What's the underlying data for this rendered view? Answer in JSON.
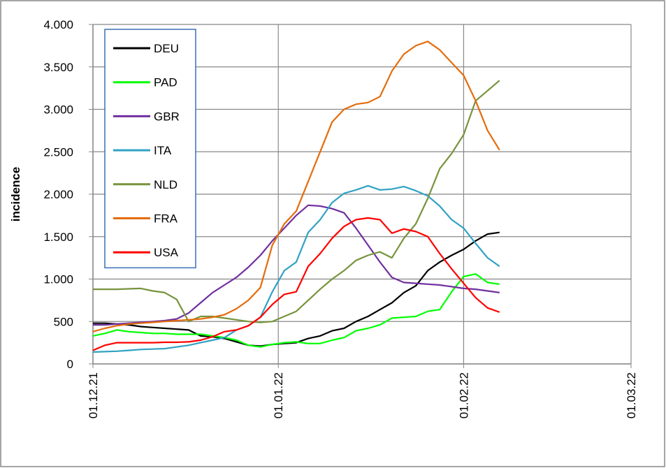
{
  "chart_data": {
    "type": "line",
    "y_label": "incidence",
    "x": [
      0,
      2,
      4,
      6,
      8,
      10,
      12,
      14,
      16,
      18,
      20,
      22,
      24,
      26,
      28,
      30,
      32,
      34,
      36,
      38,
      40,
      42,
      44,
      46,
      48,
      50,
      52,
      54,
      56,
      58,
      60,
      62,
      64,
      66,
      68
    ],
    "xlim": [
      0,
      90
    ],
    "xticks": [
      {
        "value": 0,
        "label": "01.12.21"
      },
      {
        "value": 31,
        "label": "01.01.22"
      },
      {
        "value": 62,
        "label": "01.02.22"
      },
      {
        "value": 90,
        "label": "01.03.22"
      }
    ],
    "ylim": [
      0,
      4000
    ],
    "yticks": [
      0,
      500,
      {
        "value": 1000,
        "label": "1.000"
      },
      {
        "value": 1500,
        "label": "1.500"
      },
      {
        "value": 2000,
        "label": "2.000"
      },
      {
        "value": 2500,
        "label": "2.500"
      },
      {
        "value": 3000,
        "label": "3.000"
      },
      {
        "value": 3500,
        "label": "3.500"
      },
      {
        "value": 4000,
        "label": "4.000"
      }
    ],
    "grid": true,
    "legend": "upper left",
    "series": [
      {
        "name": "DEU",
        "color": "#000000",
        "values": [
          480,
          480,
          470,
          460,
          440,
          430,
          420,
          410,
          400,
          330,
          320,
          300,
          260,
          220,
          210,
          230,
          240,
          250,
          300,
          330,
          390,
          420,
          500,
          560,
          640,
          720,
          840,
          920,
          1100,
          1200,
          1280,
          1350,
          1450,
          1530,
          1550
        ]
      },
      {
        "name": "PAD",
        "color": "#00ff00",
        "values": [
          330,
          360,
          400,
          380,
          370,
          360,
          360,
          350,
          350,
          350,
          330,
          310,
          280,
          220,
          200,
          230,
          250,
          260,
          240,
          240,
          280,
          310,
          390,
          420,
          460,
          540,
          550,
          560,
          620,
          640,
          850,
          1030,
          1060,
          960,
          940
        ]
      },
      {
        "name": "GBR",
        "color": "#7030a0",
        "values": [
          460,
          460,
          470,
          480,
          490,
          500,
          510,
          530,
          600,
          720,
          840,
          930,
          1020,
          1140,
          1280,
          1450,
          1600,
          1750,
          1870,
          1860,
          1830,
          1780,
          1600,
          1400,
          1200,
          1020,
          960,
          950,
          940,
          930,
          910,
          890,
          880,
          860,
          840
        ]
      },
      {
        "name": "ITA",
        "color": "#31a2c4",
        "values": [
          140,
          145,
          150,
          160,
          170,
          175,
          180,
          200,
          220,
          250,
          280,
          310,
          400,
          450,
          550,
          850,
          1100,
          1200,
          1550,
          1700,
          1900,
          2010,
          2050,
          2100,
          2050,
          2060,
          2090,
          2040,
          1980,
          1860,
          1700,
          1600,
          1420,
          1250,
          1150
        ]
      },
      {
        "name": "NLD",
        "color": "#77933c",
        "values": [
          880,
          880,
          880,
          885,
          890,
          860,
          840,
          760,
          500,
          560,
          560,
          540,
          520,
          500,
          490,
          500,
          560,
          620,
          750,
          880,
          1000,
          1100,
          1220,
          1280,
          1320,
          1250,
          1480,
          1650,
          1950,
          2300,
          2480,
          2700,
          3100,
          3220,
          3340
        ]
      },
      {
        "name": "FRA",
        "color": "#e46c0a",
        "values": [
          380,
          420,
          450,
          470,
          480,
          490,
          500,
          510,
          520,
          530,
          550,
          580,
          650,
          750,
          900,
          1400,
          1650,
          1800,
          2150,
          2500,
          2850,
          3000,
          3060,
          3080,
          3150,
          3450,
          3650,
          3750,
          3800,
          3700,
          3550,
          3400,
          3100,
          2750,
          2520
        ]
      },
      {
        "name": "USA",
        "color": "#ff0000",
        "values": [
          160,
          220,
          250,
          250,
          250,
          250,
          255,
          255,
          260,
          280,
          320,
          380,
          400,
          450,
          550,
          700,
          820,
          850,
          1150,
          1300,
          1480,
          1620,
          1700,
          1720,
          1700,
          1540,
          1590,
          1560,
          1500,
          1300,
          1120,
          950,
          780,
          660,
          610
        ]
      }
    ]
  }
}
